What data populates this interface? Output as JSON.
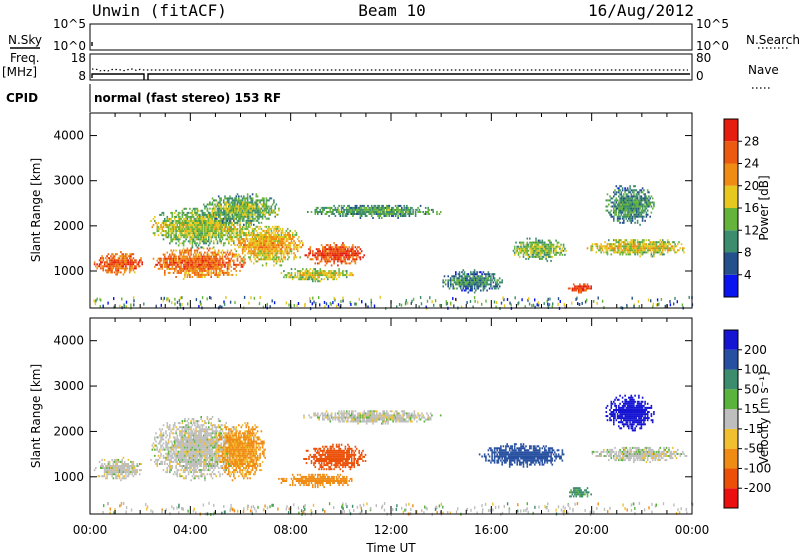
{
  "header": {
    "title_left": "Unwin (fitACF)",
    "title_center": "Beam 10",
    "title_right": "16/Aug/2012"
  },
  "status_panels": {
    "nsky_label": "N.Sky",
    "nsky_ticks": [
      "10^5",
      "10^0"
    ],
    "nsearch_label": "N.Search",
    "nsearch_ticks": [
      "10^5",
      "10^0"
    ],
    "freq_label": "Freq.",
    "freq_unit": "[MHz]",
    "freq_ticks": [
      "18",
      "8"
    ],
    "nave_label": "Nave",
    "nave_ticks": [
      "80",
      "0"
    ],
    "cpid_label": "CPID",
    "cpid_text": "normal (fast stereo) 153 RF"
  },
  "colors": {
    "power": [
      "#0a14f0",
      "#24508c",
      "#3c8c6e",
      "#64b43c",
      "#e6c81e",
      "#f08c14",
      "#ec5a12",
      "#e61e0f"
    ],
    "velocity": [
      "#ec0f0f",
      "#ec5008",
      "#f08c14",
      "#f0c030",
      "#bebebe",
      "#5ab43c",
      "#3c8c6e",
      "#2850a0",
      "#1414d2"
    ],
    "ground_scatter": "#bebebe"
  },
  "chart_data": [
    {
      "type": "heatmap",
      "name": "power",
      "ylabel": "Slant Range [km]",
      "xlabel": "",
      "xlim": [
        0,
        24
      ],
      "ylim": [
        180,
        4500
      ],
      "y_ticks": [
        "1000",
        "2000",
        "3000",
        "4000"
      ],
      "colorbar_label": "Power [dB]",
      "colorbar_range": [
        0,
        32
      ],
      "colorbar_ticks": [
        "4",
        "8",
        "12",
        "16",
        "20",
        "24",
        "28"
      ],
      "blobs": [
        {
          "t0": 0.1,
          "t1": 2.1,
          "r0": 900,
          "r1": 1400,
          "v": 22
        },
        {
          "t0": 2.4,
          "t1": 6.2,
          "r0": 800,
          "r1": 1500,
          "v": 21
        },
        {
          "t0": 2.4,
          "t1": 6.5,
          "r0": 1500,
          "r1": 2400,
          "v": 12
        },
        {
          "t0": 4.5,
          "t1": 7.5,
          "r0": 2000,
          "r1": 2700,
          "v": 10
        },
        {
          "t0": 5.5,
          "t1": 8.5,
          "r0": 1100,
          "r1": 2000,
          "v": 16
        },
        {
          "t0": 8.5,
          "t1": 11.0,
          "r0": 1100,
          "r1": 1600,
          "v": 24
        },
        {
          "t0": 7.5,
          "t1": 10.5,
          "r0": 750,
          "r1": 1050,
          "v": 13
        },
        {
          "t0": 8.5,
          "t1": 14.0,
          "r0": 2150,
          "r1": 2450,
          "v": 8
        },
        {
          "t0": 14.0,
          "t1": 16.5,
          "r0": 500,
          "r1": 1000,
          "v": 6
        },
        {
          "t0": 16.8,
          "t1": 19.0,
          "r0": 1200,
          "r1": 1700,
          "v": 11
        },
        {
          "t0": 19.0,
          "t1": 20.0,
          "r0": 500,
          "r1": 700,
          "v": 25
        },
        {
          "t0": 19.8,
          "t1": 23.8,
          "r0": 1300,
          "r1": 1700,
          "v": 14
        },
        {
          "t0": 20.5,
          "t1": 22.5,
          "r0": 2000,
          "r1": 2900,
          "v": 7
        }
      ]
    },
    {
      "type": "heatmap",
      "name": "velocity",
      "ylabel": "Slant Range [km]",
      "xlabel": "Time UT",
      "xlim": [
        0,
        24
      ],
      "ylim": [
        180,
        4500
      ],
      "x_ticks": [
        "00:00",
        "04:00",
        "08:00",
        "12:00",
        "16:00",
        "20:00",
        "00:00"
      ],
      "y_ticks": [
        "1000",
        "2000",
        "3000",
        "4000"
      ],
      "colorbar_label": "Velocity [m s⁻¹]",
      "colorbar_ticks": [
        "200",
        "100",
        "50",
        "15",
        "-15",
        "-50",
        "-100",
        "-200"
      ],
      "blobs": [
        {
          "t0": 0.1,
          "t1": 2.1,
          "r0": 900,
          "r1": 1400,
          "v": 0
        },
        {
          "t0": 2.4,
          "t1": 6.0,
          "r0": 900,
          "r1": 2300,
          "v": 0
        },
        {
          "t0": 5.0,
          "t1": 7.0,
          "r0": 900,
          "r1": 2200,
          "v": -60
        },
        {
          "t0": 8.5,
          "t1": 11.0,
          "r0": 1100,
          "r1": 1700,
          "v": -180
        },
        {
          "t0": 7.5,
          "t1": 10.5,
          "r0": 750,
          "r1": 1050,
          "v": -80
        },
        {
          "t0": 8.5,
          "t1": 14.0,
          "r0": 2150,
          "r1": 2450,
          "v": 0
        },
        {
          "t0": 15.5,
          "t1": 19.0,
          "r0": 1200,
          "r1": 1700,
          "v": 120
        },
        {
          "t0": 19.0,
          "t1": 20.0,
          "r0": 500,
          "r1": 750,
          "v": 60
        },
        {
          "t0": 20.0,
          "t1": 23.8,
          "r0": 1300,
          "r1": 1650,
          "v": 0
        },
        {
          "t0": 20.5,
          "t1": 22.5,
          "r0": 2000,
          "r1": 2800,
          "v": 220
        }
      ]
    }
  ]
}
